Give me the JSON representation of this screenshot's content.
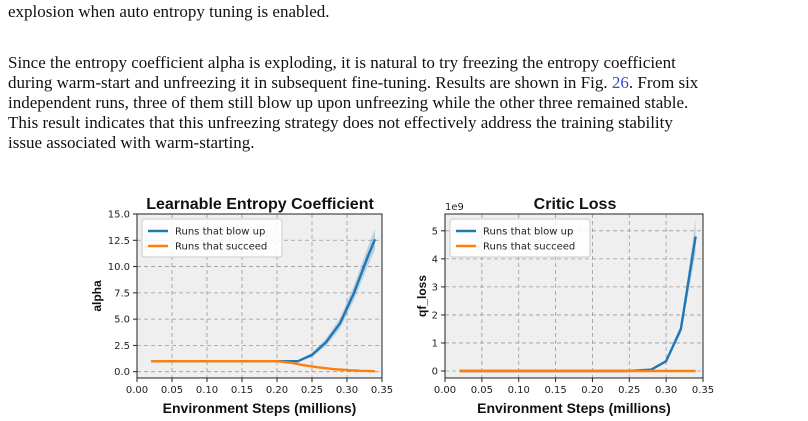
{
  "text": {
    "p1_line1": "explosion when auto entropy tuning is enabled.",
    "p2_line1": "Since the entropy coefficient alpha is exploding, it is natural to try freezing the entropy coefficient",
    "p2_line2_pre": "during warm-start and unfreezing it in subsequent fine-tuning. Results are shown in Fig. ",
    "p2_line2_ref": "26",
    "p2_line2_post": ". From six",
    "p2_line3": "independent runs, three of them still blow up upon unfreezing while the other three remained stable.",
    "p2_line4": "This result indicates that this unfreezing strategy does not effectively address the training stability",
    "p2_line5": "issue associated with warm-starting."
  },
  "colors": {
    "blue": "#1f77b4",
    "orange": "#ff7f0e",
    "panel_bg": "#efefef"
  },
  "chart_data": [
    {
      "type": "line",
      "title": "Learnable Entropy Coefficient",
      "xlabel": "Environment Steps (millions)",
      "ylabel": "alpha",
      "xlim": [
        0.0,
        0.35
      ],
      "ylim": [
        -0.6,
        15.0
      ],
      "xticks": [
        0.0,
        0.05,
        0.1,
        0.15,
        0.2,
        0.25,
        0.3,
        0.35
      ],
      "xtick_labels": [
        "0.00",
        "0.05",
        "0.10",
        "0.15",
        "0.20",
        "0.25",
        "0.30",
        "0.35"
      ],
      "yticks": [
        0.0,
        2.5,
        5.0,
        7.5,
        10.0,
        12.5,
        15.0
      ],
      "ytick_labels": [
        "0.0",
        "2.5",
        "5.0",
        "7.5",
        "10.0",
        "12.5",
        "15.0"
      ],
      "multiplier": "",
      "grid": true,
      "legend": "upper-left",
      "series": [
        {
          "name": "Runs that blow up",
          "color": "#1f77b4",
          "x": [
            0.02,
            0.05,
            0.1,
            0.15,
            0.2,
            0.23,
            0.25,
            0.27,
            0.29,
            0.31,
            0.33,
            0.34
          ],
          "y": [
            1.0,
            1.0,
            1.0,
            1.0,
            1.0,
            1.0,
            1.6,
            2.8,
            4.6,
            7.5,
            11.0,
            12.6
          ],
          "spread": [
            0.0,
            0.0,
            0.0,
            0.0,
            0.0,
            0.05,
            0.2,
            0.35,
            0.5,
            0.7,
            0.9,
            1.0
          ]
        },
        {
          "name": "Runs that succeed",
          "color": "#ff7f0e",
          "x": [
            0.02,
            0.05,
            0.1,
            0.15,
            0.2,
            0.22,
            0.24,
            0.26,
            0.28,
            0.3,
            0.32,
            0.34
          ],
          "y": [
            1.0,
            1.0,
            1.0,
            1.0,
            1.0,
            0.85,
            0.6,
            0.4,
            0.25,
            0.15,
            0.08,
            0.05
          ],
          "spread": [
            0,
            0,
            0,
            0,
            0,
            0.05,
            0.05,
            0.05,
            0.04,
            0.03,
            0.02,
            0.02
          ]
        }
      ]
    },
    {
      "type": "line",
      "title": "Critic Loss",
      "xlabel": "Environment Steps (millions)",
      "ylabel": "qf_loss",
      "xlim": [
        0.0,
        0.35
      ],
      "ylim": [
        -0.25,
        5.6
      ],
      "xticks": [
        0.0,
        0.05,
        0.1,
        0.15,
        0.2,
        0.25,
        0.3,
        0.35
      ],
      "xtick_labels": [
        "0.00",
        "0.05",
        "0.10",
        "0.15",
        "0.20",
        "0.25",
        "0.30",
        "0.35"
      ],
      "yticks": [
        0,
        1,
        2,
        3,
        4,
        5
      ],
      "ytick_labels": [
        "0",
        "1",
        "2",
        "3",
        "4",
        "5"
      ],
      "multiplier": "1e9",
      "grid": true,
      "legend": "upper-left",
      "series": [
        {
          "name": "Runs that blow up",
          "color": "#1f77b4",
          "x": [
            0.02,
            0.05,
            0.1,
            0.15,
            0.2,
            0.25,
            0.28,
            0.3,
            0.32,
            0.34
          ],
          "y": [
            0.0,
            0.0,
            0.0,
            0.0,
            0.0,
            0.0,
            0.05,
            0.35,
            1.5,
            4.8
          ],
          "spread": [
            0,
            0,
            0,
            0,
            0,
            0,
            0.02,
            0.05,
            0.15,
            0.6
          ]
        },
        {
          "name": "Runs that succeed",
          "color": "#ff7f0e",
          "x": [
            0.02,
            0.34
          ],
          "y": [
            0.0,
            0.0
          ],
          "spread": [
            0,
            0
          ]
        }
      ]
    }
  ]
}
